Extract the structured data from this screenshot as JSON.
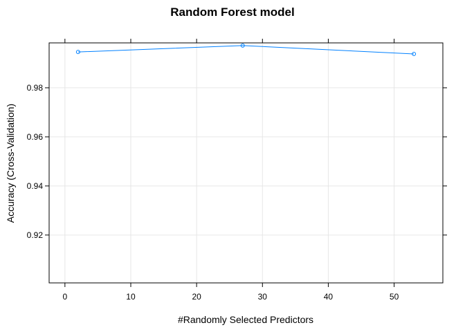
{
  "chart_data": {
    "type": "line",
    "title": "Random Forest model",
    "xlabel": "#Randomly Selected Predictors",
    "ylabel": "Accuracy (Cross-Validation)",
    "xlim": [
      -2.4,
      57.4
    ],
    "ylim": [
      0.9005,
      0.9983
    ],
    "xticks": [
      0,
      10,
      20,
      30,
      40,
      50
    ],
    "xtick_labels": [
      "0",
      "10",
      "20",
      "30",
      "40",
      "50"
    ],
    "yticks": [
      0.92,
      0.94,
      0.96,
      0.98
    ],
    "ytick_labels": [
      "0.92",
      "0.94",
      "0.96",
      "0.98"
    ],
    "grid": true,
    "series": [
      {
        "x": [
          2,
          27,
          53
        ],
        "y": [
          0.9946,
          0.9972,
          0.9938
        ],
        "color": "#0080ff",
        "marker": "open-circle"
      }
    ]
  }
}
